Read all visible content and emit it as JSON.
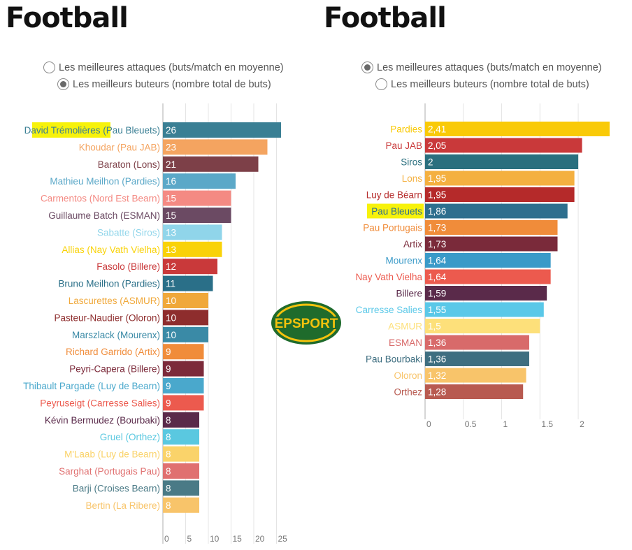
{
  "left_panel": {
    "title": "Football",
    "options": [
      {
        "label": "Les meilleures attaques (buts/match en moyenne)",
        "selected": false
      },
      {
        "label": "Les meilleurs buteurs (nombre total de buts)",
        "selected": true
      }
    ]
  },
  "right_panel": {
    "title": "Football",
    "options": [
      {
        "label": "Les meilleures attaques (buts/match en moyenne)",
        "selected": true
      },
      {
        "label": "Les meilleurs buteurs (nombre total de buts)",
        "selected": false
      }
    ]
  },
  "logo": {
    "text": "EPSPORT",
    "colors": {
      "green": "#1f6b2c",
      "yellow": "#f4c20d"
    }
  },
  "highlight_color": "#f7f20b",
  "chart_data": [
    {
      "type": "bar",
      "orientation": "horizontal",
      "title": "",
      "xlim": [
        0,
        26
      ],
      "ticks": [
        0,
        5,
        10,
        15,
        20,
        25
      ],
      "tick_labels": [
        "0",
        "5",
        "10",
        "15",
        "20",
        "25"
      ],
      "grid": true,
      "highlight_index": 0,
      "categories": [
        "David Trémolières (Pau Bleuets)",
        "Khoudar (Pau JAB)",
        "Baraton (Lons)",
        "Mathieu Meilhon (Pardies)",
        "Carmentos (Nord Est Bearn)",
        "Guillaume Batch (ESMAN)",
        "Sabatte (Siros)",
        "Allias (Nay Vath Vielha)",
        "Fasolo (Billere)",
        "Bruno Meilhon (Pardies)",
        "Lascurettes (ASMUR)",
        "Pasteur-Naudier (Oloron)",
        "Marszlack (Mourenx)",
        "Richard Garrido (Artix)",
        "Peyri-Capera (Billere)",
        "Thibault Pargade (Luy de Bearn)",
        "Peyruseigt (Carresse Salies)",
        "Kévin Bermudez (Bourbaki)",
        "Gruel (Orthez)",
        "M'Laab (Luy de Bearn)",
        "Sarghat (Portugais Pau)",
        "Barji (Croises Bearn)",
        "Bertin (La Ribere)"
      ],
      "values": [
        26,
        23,
        21,
        16,
        15,
        15,
        13,
        13,
        12,
        11,
        10,
        10,
        10,
        9,
        9,
        9,
        9,
        8,
        8,
        8,
        8,
        8,
        8
      ],
      "value_labels": [
        "26",
        "23",
        "21",
        "16",
        "15",
        "15",
        "13",
        "13",
        "12",
        "11",
        "10",
        "10",
        "10",
        "9",
        "9",
        "9",
        "9",
        "8",
        "8",
        "8",
        "8",
        "8",
        "8"
      ],
      "colors": [
        "#3a7f94",
        "#f4a460",
        "#7d4048",
        "#5ba8c8",
        "#f48a83",
        "#6b4a63",
        "#90d5ea",
        "#f9d208",
        "#c9393a",
        "#2a6f88",
        "#f0a83a",
        "#8e2d2d",
        "#3a8aa6",
        "#f08c3a",
        "#7c2a3a",
        "#4aa8cc",
        "#ec5a4e",
        "#5a2a4a",
        "#5ac8e0",
        "#fad36a",
        "#e07070",
        "#4a7a86",
        "#f8c46a"
      ]
    },
    {
      "type": "bar",
      "orientation": "horizontal",
      "title": "",
      "xlim": [
        0,
        2.41
      ],
      "ticks": [
        0,
        0.5,
        1,
        1.5,
        2
      ],
      "tick_labels": [
        "0",
        "0.5",
        "1",
        "1.5",
        "2"
      ],
      "grid": true,
      "highlight_index": 5,
      "categories": [
        "Pardies",
        "Pau JAB",
        "Siros",
        "Lons",
        "Luy de Béarn",
        "Pau Bleuets",
        "Pau Portugais",
        "Artix",
        "Mourenx",
        "Nay Vath Vielha",
        "Billere",
        "Carresse Salies",
        "ASMUR",
        "ESMAN",
        "Pau Bourbaki",
        "Oloron",
        "Orthez"
      ],
      "values": [
        2.41,
        2.05,
        2.0,
        1.95,
        1.95,
        1.86,
        1.73,
        1.73,
        1.64,
        1.64,
        1.59,
        1.55,
        1.5,
        1.36,
        1.36,
        1.32,
        1.28
      ],
      "value_labels": [
        "2,41",
        "2,05",
        "2",
        "1,95",
        "1,95",
        "1,86",
        "1,73",
        "1,73",
        "1,64",
        "1,64",
        "1,59",
        "1,55",
        "1,5",
        "1,36",
        "1,36",
        "1,32",
        "1,28"
      ],
      "colors": [
        "#f9ca08",
        "#c9393a",
        "#2a6f7e",
        "#f4b040",
        "#b52a2a",
        "#2e6f8e",
        "#f08c3a",
        "#7a2a3a",
        "#3a9ac8",
        "#ec5a4e",
        "#5a2a4a",
        "#5ac8e8",
        "#fde07a",
        "#d86a6a",
        "#3e6e80",
        "#f8c46a",
        "#b85a50"
      ]
    }
  ]
}
